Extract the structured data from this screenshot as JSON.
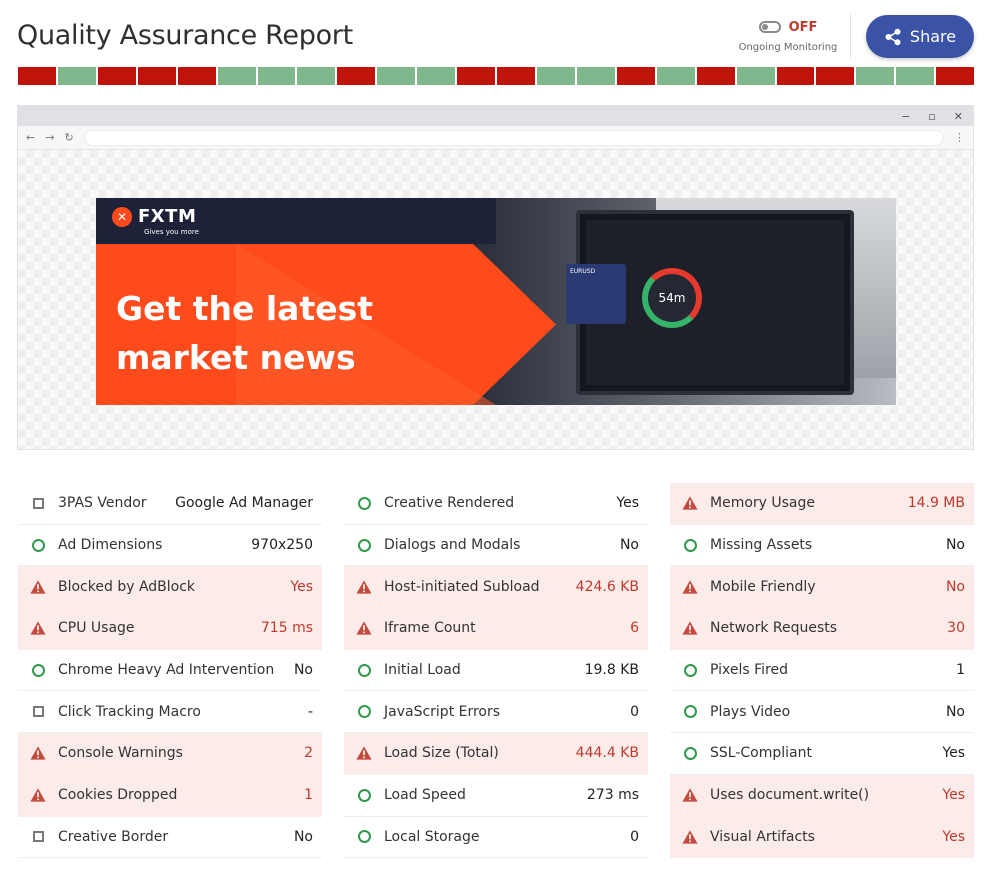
{
  "header": {
    "title": "Quality Assurance Report",
    "monitoring_state": "OFF",
    "monitoring_label": "Ongoing Monitoring",
    "share_label": "Share"
  },
  "status_bar": [
    "fail",
    "pass",
    "fail",
    "fail",
    "fail",
    "pass",
    "pass",
    "pass",
    "fail",
    "pass",
    "pass",
    "fail",
    "fail",
    "pass",
    "pass",
    "fail",
    "pass",
    "fail",
    "pass",
    "fail",
    "fail",
    "pass",
    "pass",
    "fail"
  ],
  "browser": {
    "controls": [
      "−",
      "▫",
      "✕"
    ],
    "nav": [
      "←",
      "→",
      "↻"
    ],
    "menu": "⋮"
  },
  "ad": {
    "brand": "FXTM",
    "tagline": "Gives you more",
    "headline": "Get the latest\nmarket news",
    "card_label": "EURUSD",
    "timer": "54m"
  },
  "metrics": [
    [
      {
        "icon": "square",
        "label": "3PAS Vendor",
        "value": "Google Ad Manager",
        "status": "info"
      },
      {
        "icon": "circle",
        "label": "Ad Dimensions",
        "value": "970x250",
        "status": "pass"
      },
      {
        "icon": "warning",
        "label": "Blocked by AdBlock",
        "value": "Yes",
        "status": "fail"
      },
      {
        "icon": "warning",
        "label": "CPU Usage",
        "value": "715 ms",
        "status": "fail"
      },
      {
        "icon": "circle",
        "label": "Chrome Heavy Ad Intervention",
        "value": "No",
        "status": "pass"
      },
      {
        "icon": "square",
        "label": "Click Tracking Macro",
        "value": "-",
        "status": "info"
      },
      {
        "icon": "warning",
        "label": "Console Warnings",
        "value": "2",
        "status": "fail"
      },
      {
        "icon": "warning",
        "label": "Cookies Dropped",
        "value": "1",
        "status": "fail"
      },
      {
        "icon": "square",
        "label": "Creative Border",
        "value": "No",
        "status": "info"
      }
    ],
    [
      {
        "icon": "circle",
        "label": "Creative Rendered",
        "value": "Yes",
        "status": "pass"
      },
      {
        "icon": "circle",
        "label": "Dialogs and Modals",
        "value": "No",
        "status": "pass"
      },
      {
        "icon": "warning",
        "label": "Host-initiated Subload",
        "value": "424.6 KB",
        "status": "fail"
      },
      {
        "icon": "warning",
        "label": "Iframe Count",
        "value": "6",
        "status": "fail"
      },
      {
        "icon": "circle",
        "label": "Initial Load",
        "value": "19.8 KB",
        "status": "pass"
      },
      {
        "icon": "circle",
        "label": "JavaScript Errors",
        "value": "0",
        "status": "pass"
      },
      {
        "icon": "warning",
        "label": "Load Size (Total)",
        "value": "444.4 KB",
        "status": "fail"
      },
      {
        "icon": "circle",
        "label": "Load Speed",
        "value": "273 ms",
        "status": "pass"
      },
      {
        "icon": "circle",
        "label": "Local Storage",
        "value": "0",
        "status": "pass"
      }
    ],
    [
      {
        "icon": "warning",
        "label": "Memory Usage",
        "value": "14.9 MB",
        "status": "fail"
      },
      {
        "icon": "circle",
        "label": "Missing Assets",
        "value": "No",
        "status": "pass"
      },
      {
        "icon": "warning",
        "label": "Mobile Friendly",
        "value": "No",
        "status": "fail"
      },
      {
        "icon": "warning",
        "label": "Network Requests",
        "value": "30",
        "status": "fail"
      },
      {
        "icon": "circle",
        "label": "Pixels Fired",
        "value": "1",
        "status": "pass"
      },
      {
        "icon": "circle",
        "label": "Plays Video",
        "value": "No",
        "status": "pass"
      },
      {
        "icon": "circle",
        "label": "SSL-Compliant",
        "value": "Yes",
        "status": "pass"
      },
      {
        "icon": "warning",
        "label": "Uses document.write()",
        "value": "Yes",
        "status": "fail"
      },
      {
        "icon": "warning",
        "label": "Visual Artifacts",
        "value": "Yes",
        "status": "fail"
      }
    ]
  ],
  "colors": {
    "fail": "#c0130b",
    "pass": "#7fb88d",
    "fail_text": "#c0392b",
    "fail_row_bg": "#fbecea",
    "pass_icon": "#2f9a4d",
    "share_bg": "#3a53a6",
    "ad_orange": "#ff4a1c"
  }
}
